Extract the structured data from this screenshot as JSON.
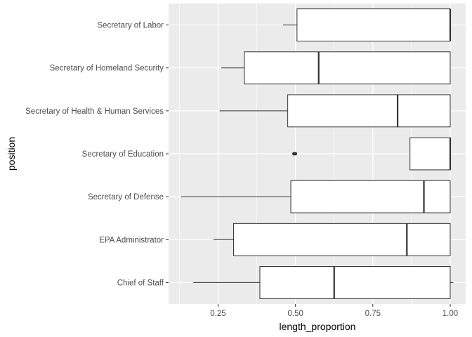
{
  "chart_data": {
    "type": "boxplot",
    "orientation": "horizontal",
    "xlabel": "length_proportion",
    "ylabel": "position",
    "xlim": [
      0.09,
      1.05
    ],
    "x_ticks": [
      0.25,
      0.5,
      0.75,
      1.0
    ],
    "x_tick_labels": [
      "0.25",
      "0.50",
      "0.75",
      "1.00"
    ],
    "grid": true,
    "legend": "none",
    "colors": {
      "panel": "#ebebeb",
      "grid": "#ffffff",
      "box_fill": "#ffffff",
      "box_stroke": "#333333"
    },
    "categories": [
      "Chief of Staff",
      "EPA Administrator",
      "Secretary of Defense",
      "Secretary of Education",
      "Secretary of Health & Human Services",
      "Secretary of Homeland Security",
      "Secretary of Labor"
    ],
    "boxes": [
      {
        "category": "Chief of Staff",
        "whisker_low": 0.17,
        "q1": 0.385,
        "median": 0.625,
        "q3": 1.0,
        "whisker_high": 1.01,
        "outliers": []
      },
      {
        "category": "EPA Administrator",
        "whisker_low": 0.235,
        "q1": 0.3,
        "median": 0.86,
        "q3": 1.0,
        "whisker_high": 1.0,
        "outliers": []
      },
      {
        "category": "Secretary of Defense",
        "whisker_low": 0.13,
        "q1": 0.485,
        "median": 0.915,
        "q3": 1.0,
        "whisker_high": 1.0,
        "outliers": []
      },
      {
        "category": "Secretary of Education",
        "whisker_low": 0.87,
        "q1": 0.87,
        "median": 1.0,
        "q3": 1.0,
        "whisker_high": 1.0,
        "outliers": [
          0.495,
          0.5
        ]
      },
      {
        "category": "Secretary of Health & Human Services",
        "whisker_low": 0.255,
        "q1": 0.475,
        "median": 0.83,
        "q3": 1.0,
        "whisker_high": 1.0,
        "outliers": []
      },
      {
        "category": "Secretary of Homeland Security",
        "whisker_low": 0.26,
        "q1": 0.335,
        "median": 0.575,
        "q3": 1.0,
        "whisker_high": 1.0,
        "outliers": []
      },
      {
        "category": "Secretary of Labor",
        "whisker_low": 0.46,
        "q1": 0.505,
        "median": 1.0,
        "q3": 1.0,
        "whisker_high": 1.0,
        "outliers": []
      }
    ]
  }
}
